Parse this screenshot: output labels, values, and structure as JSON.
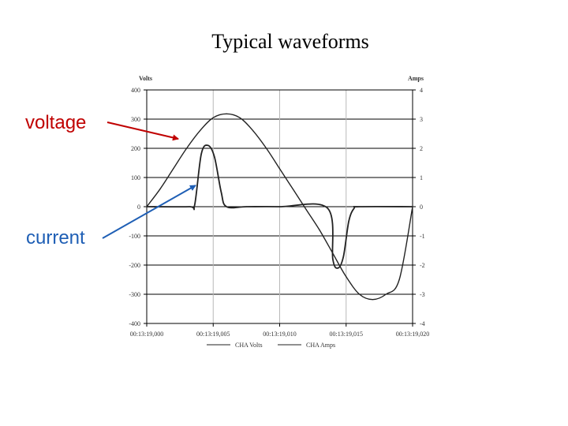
{
  "slide": {
    "title": "Typical waveforms",
    "callouts": {
      "voltage": {
        "label": "voltage",
        "color": "#c00000"
      },
      "current": {
        "label": "current",
        "color": "#1f5fb5"
      }
    }
  },
  "chart_data": {
    "type": "line",
    "y_left_label": "Volts",
    "y_right_label": "Amps",
    "y_left_ticks": [
      "400",
      "300",
      "200",
      "100",
      "0",
      "-100",
      "-200",
      "-300",
      "-400"
    ],
    "y_right_ticks": [
      "4",
      "3",
      "2",
      "1",
      "0",
      "-1",
      "-2",
      "-3",
      "-4"
    ],
    "x_ticks": [
      "00:13:19,000",
      "00:13:19,005",
      "00:13:19,010",
      "00:13:19,015",
      "00:13:19,020"
    ],
    "ylim_left": [
      -400,
      400
    ],
    "ylim_right": [
      -4,
      4
    ],
    "xlim_ms": [
      0,
      20
    ],
    "grid": true,
    "legend_position": "bottom",
    "series": [
      {
        "name": "CHA Volts",
        "unit": "V",
        "x_ms": [
          0,
          1,
          2,
          3,
          4,
          5,
          6,
          7,
          8,
          9,
          10,
          11,
          12,
          13,
          14,
          15,
          16,
          17,
          18,
          19,
          20
        ],
        "values": [
          0,
          60,
          130,
          200,
          260,
          305,
          318,
          305,
          260,
          200,
          130,
          60,
          -10,
          -80,
          -160,
          -240,
          -300,
          -318,
          -300,
          -250,
          0
        ]
      },
      {
        "name": "CHA Amps",
        "unit": "A",
        "x_ms": [
          0,
          3.2,
          3.6,
          4.1,
          4.6,
          5.1,
          5.6,
          6.0,
          7.5,
          10,
          13.6,
          14.0,
          14.4,
          14.8,
          15.2,
          15.6,
          16.0,
          20
        ],
        "values": [
          0,
          0,
          0.05,
          1.8,
          2.1,
          1.7,
          0.5,
          0,
          0,
          0,
          -0.05,
          -1.8,
          -2.1,
          -1.7,
          -0.5,
          -0.05,
          0,
          0
        ]
      }
    ]
  }
}
